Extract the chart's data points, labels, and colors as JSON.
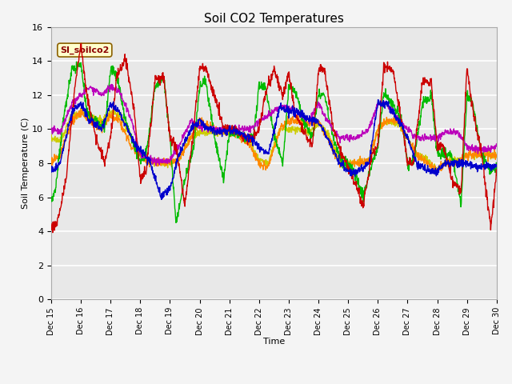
{
  "title": "Soil CO2 Temperatures",
  "xlabel": "Time",
  "ylabel": "Soil Temperature (C)",
  "ylim": [
    0,
    16
  ],
  "yticks": [
    0,
    2,
    4,
    6,
    8,
    10,
    12,
    14,
    16
  ],
  "series_colors": {
    "SoilT_1": "#cc0000",
    "SoilT_2": "#ff8800",
    "SoilT_3": "#cccc00",
    "SoilT_4": "#00bb00",
    "SoilT_5": "#0000cc",
    "SoilT_6": "#bb00bb"
  },
  "annotation_text": "SI_soilco2",
  "bg_color": "#e8e8e8",
  "xtick_labels": [
    "Dec 15",
    "Dec 16",
    "Dec 17",
    "Dec 18",
    "Dec 19",
    "Dec 20",
    "Dec 21",
    "Dec 22",
    "Dec 23",
    "Dec 24",
    "Dec 25",
    "Dec 26",
    "Dec 27",
    "Dec 28",
    "Dec 29",
    "Dec 30"
  ]
}
